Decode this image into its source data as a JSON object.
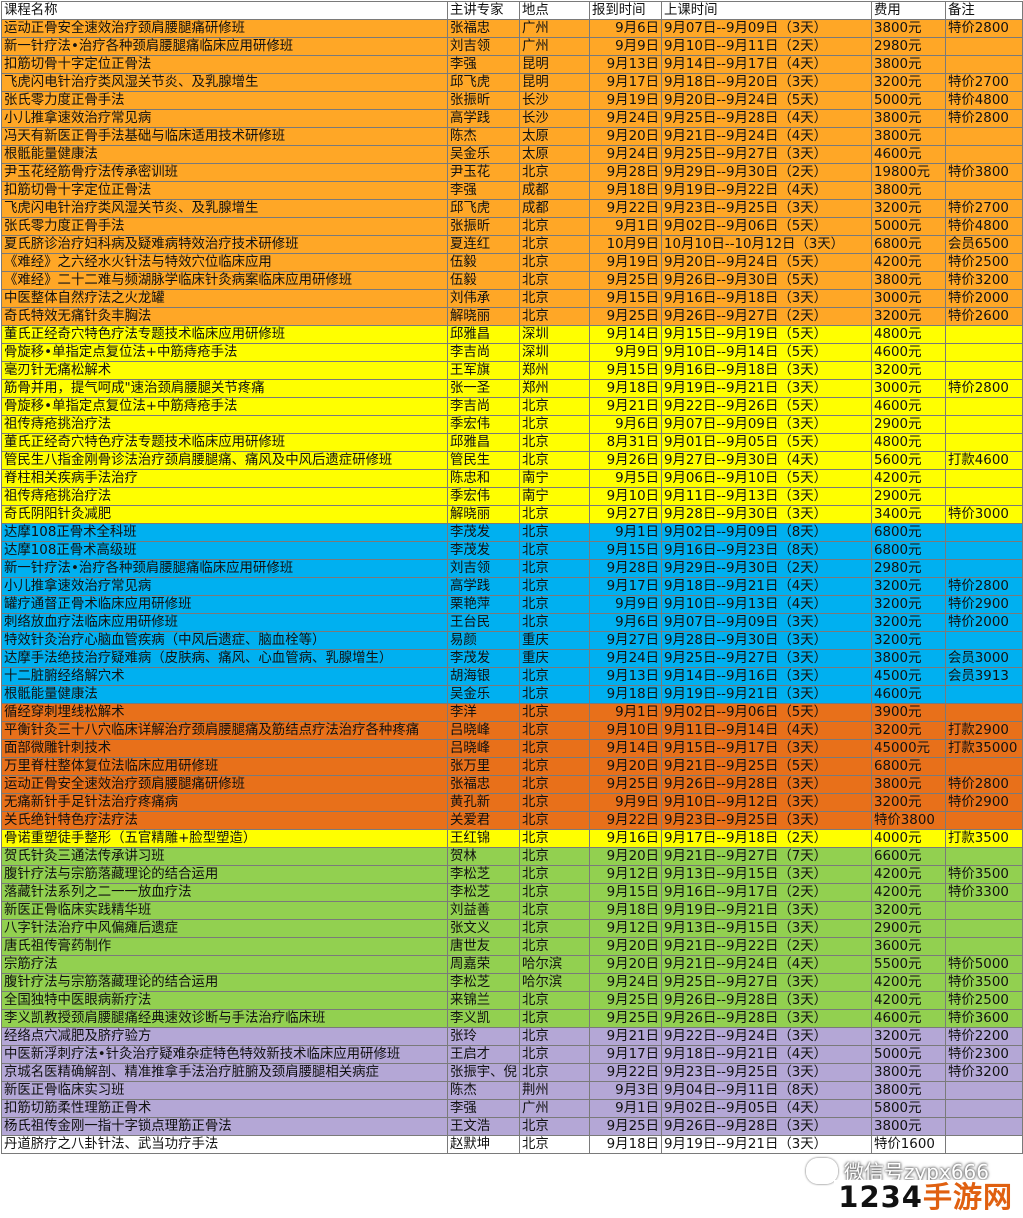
{
  "headers": [
    "课程名称",
    "主讲专家",
    "地点",
    "报到时间",
    "上课时间",
    "费用",
    "备注"
  ],
  "rows": [
    {
      "c": "orange",
      "name": "运动正骨安全速效治疗颈肩腰腿痛研修班",
      "teacher": "张福忠",
      "place": "广州",
      "report": "9月6日",
      "time": "9月07日--9月09日（3天）",
      "fee": "3800元",
      "note": "特价2800"
    },
    {
      "c": "orange",
      "name": "新一针疗法•治疗各种颈肩腰腿痛临床应用研修班",
      "teacher": "刘吉领",
      "place": "广州",
      "report": "9月9日",
      "time": "9月10日--9月11日（2天）",
      "fee": "2980元",
      "note": ""
    },
    {
      "c": "orange",
      "name": "扣筋切骨十字定位正骨法",
      "teacher": "李强",
      "place": "昆明",
      "report": "9月13日",
      "time": "9月14日--9月17日（4天）",
      "fee": "3800元",
      "note": ""
    },
    {
      "c": "orange",
      "name": "飞虎闪电针治疗类风湿关节炎、及乳腺增生",
      "teacher": "邱飞虎",
      "place": "昆明",
      "report": "9月17日",
      "time": "9月18日--9月20日（3天）",
      "fee": "3200元",
      "note": "特价2700"
    },
    {
      "c": "orange",
      "name": "张氏零力度正骨手法",
      "teacher": "张振昕",
      "place": "长沙",
      "report": "9月19日",
      "time": "9月20日--9月24日（5天）",
      "fee": "5000元",
      "note": "特价4800"
    },
    {
      "c": "orange",
      "name": "小儿推拿速效治疗常见病",
      "teacher": "高学践",
      "place": "长沙",
      "report": "9月24日",
      "time": "9月25日--9月28日（4天）",
      "fee": "3800元",
      "note": "特价2800"
    },
    {
      "c": "orange",
      "name": "冯天有新医正骨手法基础与临床适用技术研修班",
      "teacher": "陈杰",
      "place": "太原",
      "report": "9月20日",
      "time": "9月21日--9月24日（4天）",
      "fee": "3800元",
      "note": ""
    },
    {
      "c": "orange",
      "name": "根骶能量健康法",
      "teacher": "吴金乐",
      "place": "太原",
      "report": "9月24日",
      "time": "9月25日--9月27日（3天）",
      "fee": "4600元",
      "note": ""
    },
    {
      "c": "orange",
      "red": true,
      "name": "尹玉花经筋骨疗法传承密训班",
      "teacher": "尹玉花",
      "place": "北京",
      "report": "9月28日",
      "time": "9月29日--9月30日（2天）",
      "fee": "19800元",
      "note": "特价3800"
    },
    {
      "c": "orange",
      "name": "扣筋切骨十字定位正骨法",
      "teacher": "李强",
      "place": "成都",
      "report": "9月18日",
      "time": "9月19日--9月22日（4天）",
      "fee": "3800元",
      "note": ""
    },
    {
      "c": "orange",
      "name": "飞虎闪电针治疗类风湿关节炎、及乳腺增生",
      "teacher": "邱飞虎",
      "place": "成都",
      "report": "9月22日",
      "time": "9月23日--9月25日（3天）",
      "fee": "3200元",
      "note": "特价2700"
    },
    {
      "c": "orange",
      "name": "张氏零力度正骨手法",
      "teacher": "张振昕",
      "place": "北京",
      "report": "9月1日",
      "time": "9月02日--9月06日（5天）",
      "fee": "5000元",
      "note": "特价4800"
    },
    {
      "c": "orange",
      "name": "夏氏脐诊治疗妇科病及疑难病特效治疗技术研修班",
      "teacher": "夏连红",
      "place": "北京",
      "report": "10月9日",
      "time": "10月10日--10月12日（3天）",
      "fee": "6800元",
      "note": "会员6500"
    },
    {
      "c": "orange",
      "name": "《难经》之六经水火针法与特效穴位临床应用",
      "teacher": "伍毅",
      "place": "北京",
      "report": "9月19日",
      "time": "9月20日--9月24日（5天）",
      "fee": "4200元",
      "note": "特价2500"
    },
    {
      "c": "orange",
      "name": "《难经》二十二难与频湖脉学临床针灸病案临床应用研修班",
      "teacher": "伍毅",
      "place": "北京",
      "report": "9月25日",
      "time": "9月26日--9月30日（5天）",
      "fee": "3800元",
      "note": "特价3200"
    },
    {
      "c": "orange",
      "name": "中医整体自然疗法之火龙罐",
      "teacher": "刘伟承",
      "place": "北京",
      "report": "9月15日",
      "time": "9月16日--9月18日（3天）",
      "fee": "3000元",
      "note": "特价2000"
    },
    {
      "c": "orange",
      "name": "奇氏特效无痛针灸丰胸法",
      "teacher": "解晓丽",
      "place": "北京",
      "report": "9月25日",
      "time": "9月26日--9月27日（2天）",
      "fee": "3200元",
      "note": "特价2600"
    },
    {
      "c": "yellow",
      "name": "董氏正经奇穴特色疗法专题技术临床应用研修班",
      "teacher": "邱雅昌",
      "place": "深圳",
      "report": "9月14日",
      "time": "9月15日--9月19日（5天）",
      "fee": "4800元",
      "note": ""
    },
    {
      "c": "yellow",
      "name": "骨旋移•单指定点复位法+中筋痔疮手法",
      "teacher": "李吉尚",
      "place": "深圳",
      "report": "9月9日",
      "time": "9月10日--9月14日（5天）",
      "fee": "4600元",
      "note": ""
    },
    {
      "c": "yellow",
      "name": "毫刃针无痛松解术",
      "teacher": "王军旗",
      "place": "郑州",
      "report": "9月15日",
      "time": "9月16日--9月18日（3天）",
      "fee": "3200元",
      "note": ""
    },
    {
      "c": "yellow",
      "name": "筋骨并用，提气呵成\"速治颈肩腰腿关节疼痛",
      "teacher": "张一圣",
      "place": "郑州",
      "report": "9月18日",
      "time": "9月19日--9月21日（3天）",
      "fee": "3000元",
      "note": "特价2800"
    },
    {
      "c": "yellow",
      "name": "骨旋移•单指定点复位法+中筋痔疮手法",
      "teacher": "李吉尚",
      "place": "北京",
      "report": "9月21日",
      "time": "9月22日--9月26日（5天）",
      "fee": "4600元",
      "note": ""
    },
    {
      "c": "yellow",
      "name": "祖传痔疮挑治疗法",
      "teacher": "季宏伟",
      "place": "北京",
      "report": "9月6日",
      "time": "9月07日--9月09日（3天）",
      "fee": "2900元",
      "note": ""
    },
    {
      "c": "yellow",
      "name": "董氏正经奇穴特色疗法专题技术临床应用研修班",
      "teacher": "邱雅昌",
      "place": "北京",
      "report": "8月31日",
      "time": "9月01日--9月05日（5天）",
      "fee": "4800元",
      "note": ""
    },
    {
      "c": "yellow",
      "name": "管民生八指金刚骨诊法治疗颈肩腰腿痛、痛风及中风后遗症研修班",
      "teacher": "管民生",
      "place": "北京",
      "report": "9月26日",
      "time": "9月27日--9月30日（4天）",
      "fee": "5600元",
      "note": "打款4600"
    },
    {
      "c": "yellow",
      "name": "脊柱相关疾病手法治疗",
      "teacher": "陈忠和",
      "place": "南宁",
      "report": "9月5日",
      "time": "9月06日--9月10日（5天）",
      "fee": "4200元",
      "note": ""
    },
    {
      "c": "yellow",
      "name": "祖传痔疮挑治疗法",
      "teacher": "季宏伟",
      "place": "南宁",
      "report": "9月10日",
      "time": "9月11日--9月13日（3天）",
      "fee": "2900元",
      "note": ""
    },
    {
      "c": "yellow",
      "name": "奇氏阴阳针灸减肥",
      "teacher": "解晓丽",
      "place": "北京",
      "report": "9月27日",
      "time": "9月28日--9月30日（3天）",
      "fee": "3400元",
      "note": "特价3000"
    },
    {
      "c": "blue",
      "name": "达摩108正骨术全科班",
      "teacher": "李茂发",
      "place": "北京",
      "report": "9月1日",
      "time": "9月02日--9月09日（8天）",
      "fee": "6800元",
      "note": ""
    },
    {
      "c": "blue",
      "name": "达摩108正骨术高级班",
      "teacher": "李茂发",
      "place": "北京",
      "report": "9月15日",
      "time": "9月16日--9月23日（8天）",
      "fee": "6800元",
      "note": ""
    },
    {
      "c": "blue",
      "name": "新一针疗法•治疗各种颈肩腰腿痛临床应用研修班",
      "teacher": "刘吉领",
      "place": "北京",
      "report": "9月28日",
      "time": "9月29日--9月30日（2天）",
      "fee": "2980元",
      "note": ""
    },
    {
      "c": "blue",
      "name": "小儿推拿速效治疗常见病",
      "teacher": "高学践",
      "place": "北京",
      "report": "9月17日",
      "time": "9月18日--9月21日（4天）",
      "fee": "3200元",
      "note": "特价2800"
    },
    {
      "c": "blue",
      "name": "罐疗通督正骨术临床应用研修班",
      "teacher": "栗艳萍",
      "place": "北京",
      "report": "9月9日",
      "time": "9月10日--9月13日（4天）",
      "fee": "3200元",
      "note": "特价2900"
    },
    {
      "c": "blue",
      "name": "刺络放血疗法临床应用研修班",
      "teacher": "王台民",
      "place": "北京",
      "report": "9月6日",
      "time": "9月07日--9月09日（3天）",
      "fee": "3200元",
      "note": "特价2000"
    },
    {
      "c": "blue",
      "name": "特效针灸治疗心脑血管疾病（中风后遗症、脑血栓等）",
      "teacher": "易颜",
      "place": "重庆",
      "report": "9月27日",
      "time": "9月28日--9月30日（3天）",
      "fee": "3200元",
      "note": ""
    },
    {
      "c": "blue",
      "name": "达摩手法绝技治疗疑难病（皮肤病、痛风、心血管病、乳腺增生）",
      "teacher": "李茂发",
      "place": "重庆",
      "report": "9月24日",
      "time": "9月25日--9月27日（3天）",
      "fee": "3800元",
      "note": "会员3000"
    },
    {
      "c": "blue",
      "name": "十二脏腑经络解穴术",
      "teacher": "胡海银",
      "place": "北京",
      "report": "9月13日",
      "time": "9月14日--9月16日（3天）",
      "fee": "4500元",
      "note": "会员3913"
    },
    {
      "c": "blue",
      "name": "根骶能量健康法",
      "teacher": "吴金乐",
      "place": "北京",
      "report": "9月18日",
      "time": "9月19日--9月21日（3天）",
      "fee": "4600元",
      "note": ""
    },
    {
      "c": "brown",
      "name": "循经穿刺埋线松解术",
      "teacher": "李洋",
      "place": "北京",
      "report": "9月1日",
      "time": "9月02日--9月06日（5天）",
      "fee": "3900元",
      "note": ""
    },
    {
      "c": "brown",
      "name": "平衡针灸三十八穴临床详解治疗颈肩腰腿痛及筋结点疗法治疗各种疼痛",
      "teacher": "吕晓峰",
      "place": "北京",
      "report": "9月10日",
      "time": "9月11日--9月14日（4天）",
      "fee": "3200元",
      "note": "打款2900"
    },
    {
      "c": "brown",
      "name": "面部微雕针刺技术",
      "teacher": "吕晓峰",
      "place": "北京",
      "report": "9月14日",
      "time": "9月15日--9月17日（3天）",
      "fee": "45000元",
      "note": "打款35000"
    },
    {
      "c": "brown",
      "name": "万里脊柱整体复位法临床应用研修班",
      "teacher": "张万里",
      "place": "北京",
      "report": "9月20日",
      "time": "9月21日--9月25日（5天）",
      "fee": "6800元",
      "note": ""
    },
    {
      "c": "brown",
      "name": "运动正骨安全速效治疗颈肩腰腿痛研修班",
      "teacher": "张福忠",
      "place": "北京",
      "report": "9月25日",
      "time": "9月26日--9月28日（3天）",
      "fee": "3800元",
      "note": "特价2800"
    },
    {
      "c": "brown",
      "name": "无痛新针手足针法治疗疼痛病",
      "teacher": "黄孔新",
      "place": "北京",
      "report": "9月9日",
      "time": "9月10日--9月12日（3天）",
      "fee": "3200元",
      "note": "特价2900"
    },
    {
      "c": "brown",
      "red": true,
      "name": "关氏绝针特色疗法疗法",
      "teacher": "关爱君",
      "place": "北京",
      "report": "9月22日",
      "time": "9月23日--9月25日（3天）",
      "fee": "特价3800",
      "note": ""
    },
    {
      "c": "yellow",
      "name": "骨诺重塑徒手整形（五官精雕+脸型塑造）",
      "teacher": "王红锦",
      "place": "北京",
      "report": "9月16日",
      "time": "9月17日--9月18日（2天）",
      "fee": "4000元",
      "note": "打款3500"
    },
    {
      "c": "green",
      "name": "贺氏针灸三通法传承讲习班",
      "teacher": "贺林",
      "place": "北京",
      "report": "9月20日",
      "time": "9月21日--9月27日（7天）",
      "fee": "6600元",
      "note": ""
    },
    {
      "c": "green",
      "name": "腹针疗法与宗筋落藏理论的结合运用",
      "teacher": "李松芝",
      "place": "北京",
      "report": "9月12日",
      "time": "9月13日--9月15日（3天）",
      "fee": "4200元",
      "note": "特价3500"
    },
    {
      "c": "green",
      "name": "落藏针法系列之二一一放血疗法",
      "teacher": "李松芝",
      "place": "北京",
      "report": "9月15日",
      "time": "9月16日--9月17日（2天）",
      "fee": "4200元",
      "note": "特价3300"
    },
    {
      "c": "green",
      "name": "新医正骨临床实践精华班",
      "teacher": "刘益善",
      "place": "北京",
      "report": "9月18日",
      "time": "9月19日--9月21日（3天）",
      "fee": "3200元",
      "note": ""
    },
    {
      "c": "green",
      "name": "八字针法治疗中风偏瘫后遗症",
      "teacher": "张文义",
      "place": "北京",
      "report": "9月12日",
      "time": "9月13日--9月15日（3天）",
      "fee": "2900元",
      "note": ""
    },
    {
      "c": "green",
      "name": "唐氏祖传膏药制作",
      "teacher": "唐世友",
      "place": "北京",
      "report": "9月20日",
      "time": "9月21日--9月22日（2天）",
      "fee": "3600元",
      "note": ""
    },
    {
      "c": "green",
      "name": "宗筋疗法",
      "teacher": "周嘉荣",
      "place": "哈尔滨",
      "report": "9月20日",
      "time": "9月21日--9月24日（4天）",
      "fee": "5500元",
      "note": "特价5000"
    },
    {
      "c": "green",
      "name": "腹针疗法与宗筋落藏理论的结合运用",
      "teacher": "李松芝",
      "place": "哈尔滨",
      "report": "9月24日",
      "time": "9月25日--9月27日（3天）",
      "fee": "4200元",
      "note": "特价3500"
    },
    {
      "c": "green",
      "name": "全国独特中医眼病新疗法",
      "teacher": "来锦兰",
      "place": "北京",
      "report": "9月25日",
      "time": "9月26日--9月28日（3天）",
      "fee": "4200元",
      "note": "特价2500"
    },
    {
      "c": "green",
      "name": "李义凯教授颈肩腰腿痛经典速效诊断与手法治疗临床班",
      "teacher": "李义凯",
      "place": "北京",
      "report": "9月25日",
      "time": "9月26日--9月28日（3天）",
      "fee": "4600元",
      "note": "特价3600"
    },
    {
      "c": "purple",
      "name": "经络点穴减肥及脐疗验方",
      "teacher": "张玲",
      "place": "北京",
      "report": "9月21日",
      "time": "9月22日--9月24日（3天）",
      "fee": "3200元",
      "note": "特价2200"
    },
    {
      "c": "purple",
      "name": "中医新浮刺疗法•针灸治疗疑难杂症特色特效新技术临床应用研修班",
      "teacher": "王启才",
      "place": "北京",
      "report": "9月17日",
      "time": "9月18日--9月21日（4天）",
      "fee": "5000元",
      "note": "特价2300"
    },
    {
      "c": "purple",
      "name": "京城名医精确解剖、精准推拿手法治疗脏腑及颈肩腰腿相关病症",
      "teacher": "张振宇、倪",
      "place": "北京",
      "report": "9月22日",
      "time": "9月23日--9月25日（3天）",
      "fee": "3800元",
      "note": "特价3200"
    },
    {
      "c": "purple",
      "name": "新医正骨临床实习班",
      "teacher": "陈杰",
      "place": "荆州",
      "report": "9月3日",
      "time": "9月04日--9月11日（8天）",
      "fee": "3800元",
      "note": ""
    },
    {
      "c": "purple",
      "name": "扣筋切筋柔性理筋正骨术",
      "teacher": "李强",
      "place": "广州",
      "report": "9月1日",
      "time": "9月02日--9月05日（4天）",
      "fee": "5800元",
      "note": ""
    },
    {
      "c": "purple",
      "name": "杨氏祖传金刚一指十字锁点理筋正骨法",
      "teacher": "王文浩",
      "place": "北京",
      "report": "9月25日",
      "time": "9月26日--9月28日（3天）",
      "fee": "3800元",
      "note": ""
    },
    {
      "c": "white",
      "name": "丹道脐疗之八卦针法、武当功疗手法",
      "teacher": "赵默坤",
      "place": "北京",
      "report": "9月18日",
      "time": "9月19日--9月21日（3天）",
      "fee": "特价1600",
      "note": ""
    }
  ],
  "watermark": {
    "text": "微信号zypx666",
    "icon": "wechat-icon"
  },
  "brand": {
    "prefix": "1234",
    "suffix": "手游网"
  }
}
